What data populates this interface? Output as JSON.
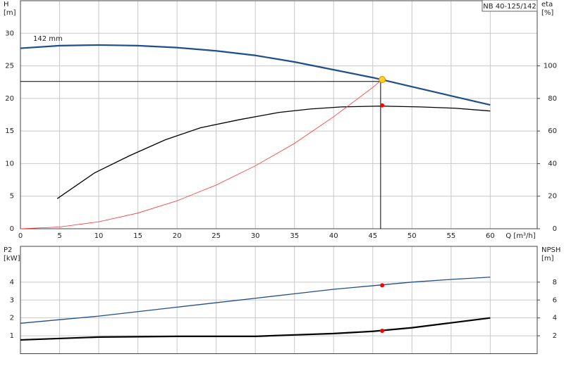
{
  "chart_data": [
    {
      "type": "line",
      "title": "NB 40-125/142",
      "annotation": "142 mm",
      "xlabel": "Q [m³/h]",
      "ylabel": [
        "H",
        "[m]"
      ],
      "y2label": [
        "eta",
        "[%]"
      ],
      "xlim": [
        0,
        66
      ],
      "xticks": [
        0,
        5,
        10,
        15,
        20,
        25,
        30,
        35,
        40,
        45,
        50,
        55,
        60
      ],
      "ylim": [
        0,
        35
      ],
      "yticks": [
        0,
        5,
        10,
        15,
        20,
        25,
        30
      ],
      "y2lim": [
        0,
        140
      ],
      "y2ticks": [
        0,
        20,
        40,
        60,
        80,
        100
      ],
      "grid": true,
      "ref_q": 46,
      "ref_h": 22.6,
      "series": [
        {
          "style": "line",
          "color": "#1f4e8c",
          "width": 2.2,
          "x": [
            0,
            5,
            10,
            15,
            20,
            25,
            30,
            35,
            40,
            45,
            50,
            55,
            60
          ],
          "values": [
            27.7,
            28.1,
            28.2,
            28.1,
            27.8,
            27.3,
            26.6,
            25.6,
            24.4,
            23.2,
            21.8,
            20.4,
            19.0
          ]
        },
        {
          "style": "line",
          "color": "#000000",
          "width": 1.3,
          "axis": "y2",
          "x": [
            4.7,
            9.5,
            14,
            18.5,
            23,
            28,
            33,
            37,
            41,
            46,
            51,
            55.5,
            60
          ],
          "values": [
            18.5,
            34.4,
            45,
            54.6,
            62,
            67,
            71.4,
            73.5,
            74.8,
            75.3,
            74.8,
            74,
            72.3
          ]
        },
        {
          "style": "line",
          "color": "#ff3030",
          "width": 0.8,
          "x": [
            0,
            5,
            10,
            15,
            20,
            25,
            30,
            35,
            40,
            45,
            46.2
          ],
          "values": [
            0,
            0.27,
            1.07,
            2.41,
            4.29,
            6.71,
            9.66,
            13.1,
            17.2,
            21.7,
            22.9
          ]
        },
        {
          "style": "point",
          "color": "#ff0000",
          "axis": "y2",
          "x": [
            46.2
          ],
          "values": [
            75.7
          ]
        },
        {
          "style": "point",
          "color": "#ffd21f",
          "stroke": "#e08a00",
          "size": 4.5,
          "x": [
            46.2
          ],
          "values": [
            22.9
          ]
        }
      ]
    },
    {
      "type": "line",
      "ylabel": [
        "P2",
        "[kW]"
      ],
      "y2label": [
        "NPSH",
        "[m]"
      ],
      "xlim": [
        0,
        66
      ],
      "xticks": [
        0,
        5,
        10,
        15,
        20,
        25,
        30,
        35,
        40,
        45,
        50,
        55,
        60
      ],
      "ylim": [
        0,
        6
      ],
      "yticks": [
        1,
        2,
        3,
        4
      ],
      "y2lim": [
        0,
        12
      ],
      "y2ticks": [
        2,
        4,
        6,
        8
      ],
      "grid": true,
      "series": [
        {
          "style": "line",
          "color": "#1f4e8c",
          "width": 1.3,
          "x": [
            0,
            5,
            10,
            15,
            20,
            25,
            30,
            35,
            40,
            45,
            50,
            55,
            60
          ],
          "values": [
            1.7,
            1.9,
            2.1,
            2.35,
            2.6,
            2.85,
            3.1,
            3.35,
            3.6,
            3.8,
            4.0,
            4.15,
            4.28
          ]
        },
        {
          "style": "line",
          "color": "#000000",
          "width": 2.2,
          "axis": "y2",
          "x": [
            0,
            10,
            20,
            30,
            35,
            40,
            45,
            50,
            55,
            60
          ],
          "values": [
            1.54,
            1.86,
            1.94,
            1.94,
            2.1,
            2.25,
            2.5,
            2.9,
            3.45,
            4.0
          ]
        },
        {
          "style": "point",
          "color": "#ff0000",
          "x": [
            46.2
          ],
          "values": [
            3.82
          ]
        },
        {
          "style": "point",
          "color": "#ff0000",
          "axis": "y2",
          "x": [
            46.2
          ],
          "values": [
            2.56
          ]
        }
      ]
    }
  ]
}
